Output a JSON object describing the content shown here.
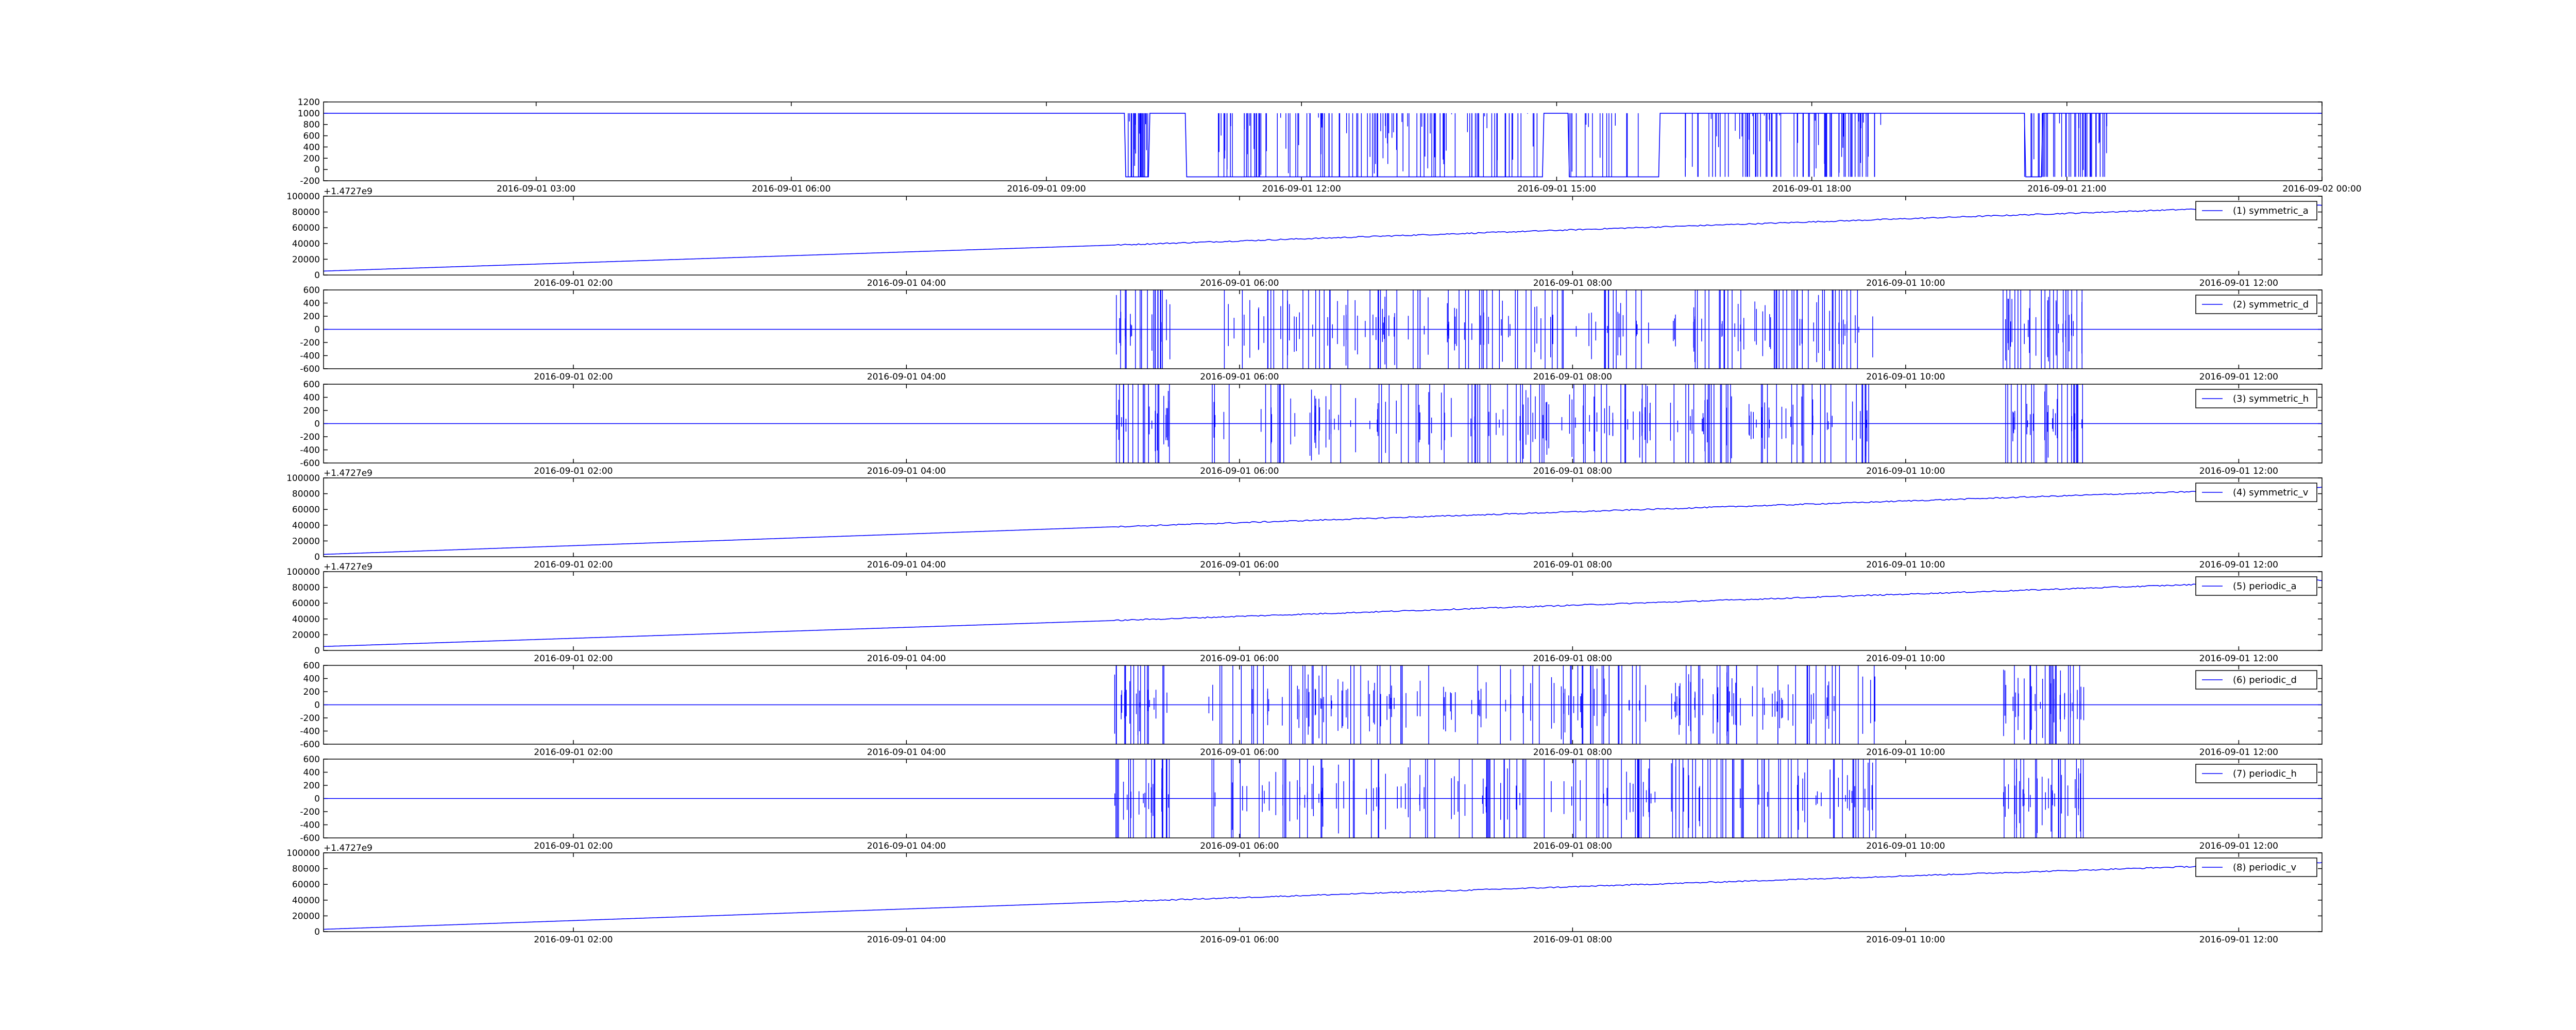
{
  "line_color": "#0000ff",
  "tick_label_color": "#000000",
  "chart_data": [
    {
      "type": "line",
      "legend": null,
      "ylim": [
        -200,
        1200
      ],
      "yticks": [
        "-200",
        "0",
        "200",
        "400",
        "600",
        "800",
        "1000",
        "1200"
      ],
      "xticks": [
        "2016-09-01 03:00",
        "2016-09-01 06:00",
        "2016-09-01 09:00",
        "2016-09-01 12:00",
        "2016-09-01 15:00",
        "2016-09-01 18:00",
        "2016-09-01 21:00",
        "2016-09-02 00:00"
      ],
      "offset_text": "",
      "series": [
        {
          "baseline": 1000,
          "low": -130,
          "x": [
            "2016-09-01 00:30",
            "2016-09-01 09:55",
            "2016-09-01 09:56",
            "2016-09-01 10:12",
            "2016-09-01 10:13",
            "2016-09-01 10:38",
            "2016-09-01 10:39",
            "2016-09-01 14:50",
            "2016-09-01 14:51",
            "2016-09-01 15:08",
            "2016-09-01 15:09",
            "2016-09-01 16:12",
            "2016-09-01 16:13",
            "2016-09-01 20:30",
            "2016-09-01 20:31",
            "2016-09-01 20:42",
            "2016-09-01 20:43",
            "2016-09-01 21:35",
            "2016-09-02 00:00"
          ],
          "y": [
            1000,
            1000,
            -130,
            -130,
            1000,
            1000,
            -130,
            -130,
            1000,
            1000,
            -130,
            -130,
            1000,
            1000,
            -130,
            -130,
            1000,
            1000,
            1000
          ],
          "spike_windows": [
            [
              "2016-09-01 09:55",
              "2016-09-01 10:12",
              25
            ],
            [
              "2016-09-01 11:00",
              "2016-09-01 14:50",
              130
            ],
            [
              "2016-09-01 15:08",
              "2016-09-01 16:12",
              18
            ],
            [
              "2016-09-01 16:30",
              "2016-09-01 18:50",
              90
            ],
            [
              "2016-09-01 20:30",
              "2016-09-01 21:30",
              45
            ]
          ]
        }
      ]
    },
    {
      "type": "line",
      "legend": "(1) symmetric_a",
      "ylim": [
        0,
        100000
      ],
      "yticks": [
        "0",
        "20000",
        "40000",
        "60000",
        "80000",
        "100000"
      ],
      "xticks": [
        "2016-09-01 02:00",
        "2016-09-01 04:00",
        "2016-09-01 06:00",
        "2016-09-01 08:00",
        "2016-09-01 10:00",
        "2016-09-01 12:00"
      ],
      "offset_text": "+1.4727e9",
      "series": [
        {
          "x": [
            "2016-09-01 00:30",
            "2016-09-01 05:15",
            "2016-09-01 12:30"
          ],
          "y": [
            5000,
            38000,
            89000
          ],
          "noise": 1500
        }
      ]
    },
    {
      "type": "line",
      "legend": "(2) symmetric_d",
      "ylim": [
        -600,
        600
      ],
      "yticks": [
        "-600",
        "-400",
        "-200",
        "0",
        "200",
        "400",
        "600"
      ],
      "xticks": [
        "2016-09-01 02:00",
        "2016-09-01 04:00",
        "2016-09-01 06:00",
        "2016-09-01 08:00",
        "2016-09-01 10:00",
        "2016-09-01 12:00"
      ],
      "offset_text": "",
      "series": [
        {
          "baseline": 0,
          "amplitude": 600,
          "spike_windows": [
            [
              "2016-09-01 05:15",
              "2016-09-01 05:35",
              30
            ],
            [
              "2016-09-01 05:48",
              "2016-09-01 06:15",
              14
            ],
            [
              "2016-09-01 06:15",
              "2016-09-01 08:30",
              110
            ],
            [
              "2016-09-01 08:35",
              "2016-09-01 09:50",
              70
            ],
            [
              "2016-09-01 10:35",
              "2016-09-01 11:05",
              40
            ]
          ]
        }
      ]
    },
    {
      "type": "line",
      "legend": "(3) symmetric_h",
      "ylim": [
        -600,
        600
      ],
      "yticks": [
        "-600",
        "-400",
        "-200",
        "0",
        "200",
        "400",
        "600"
      ],
      "xticks": [
        "2016-09-01 02:00",
        "2016-09-01 04:00",
        "2016-09-01 06:00",
        "2016-09-01 08:00",
        "2016-09-01 10:00",
        "2016-09-01 12:00"
      ],
      "offset_text": "",
      "series": [
        {
          "baseline": 0,
          "amplitude": 600,
          "spike_windows": [
            [
              "2016-09-01 05:15",
              "2016-09-01 05:35",
              30
            ],
            [
              "2016-09-01 05:48",
              "2016-09-01 06:15",
              14
            ],
            [
              "2016-09-01 06:15",
              "2016-09-01 08:30",
              110
            ],
            [
              "2016-09-01 08:35",
              "2016-09-01 09:50",
              70
            ],
            [
              "2016-09-01 10:35",
              "2016-09-01 11:05",
              40
            ]
          ]
        }
      ]
    },
    {
      "type": "line",
      "legend": "(4) symmetric_v",
      "ylim": [
        0,
        100000
      ],
      "yticks": [
        "0",
        "20000",
        "40000",
        "60000",
        "80000",
        "100000"
      ],
      "xticks": [
        "2016-09-01 02:00",
        "2016-09-01 04:00",
        "2016-09-01 06:00",
        "2016-09-01 08:00",
        "2016-09-01 10:00",
        "2016-09-01 12:00"
      ],
      "offset_text": "+1.4727e9",
      "series": [
        {
          "x": [
            "2016-09-01 00:30",
            "2016-09-01 05:15",
            "2016-09-01 12:30"
          ],
          "y": [
            3000,
            38000,
            88000
          ],
          "noise": 1500
        }
      ]
    },
    {
      "type": "line",
      "legend": "(5) periodic_a",
      "ylim": [
        0,
        100000
      ],
      "yticks": [
        "0",
        "20000",
        "40000",
        "60000",
        "80000",
        "100000"
      ],
      "xticks": [
        "2016-09-01 02:00",
        "2016-09-01 04:00",
        "2016-09-01 06:00",
        "2016-09-01 08:00",
        "2016-09-01 10:00",
        "2016-09-01 12:00"
      ],
      "offset_text": "+1.4727e9",
      "series": [
        {
          "x": [
            "2016-09-01 00:30",
            "2016-09-01 05:15",
            "2016-09-01 12:30"
          ],
          "y": [
            5000,
            38000,
            89000
          ],
          "noise": 1500
        }
      ]
    },
    {
      "type": "line",
      "legend": "(6) periodic_d",
      "ylim": [
        -600,
        600
      ],
      "yticks": [
        "-600",
        "-400",
        "-200",
        "0",
        "200",
        "400",
        "600"
      ],
      "xticks": [
        "2016-09-01 02:00",
        "2016-09-01 04:00",
        "2016-09-01 06:00",
        "2016-09-01 08:00",
        "2016-09-01 10:00",
        "2016-09-01 12:00"
      ],
      "offset_text": "",
      "series": [
        {
          "baseline": 0,
          "amplitude": 600,
          "spike_windows": [
            [
              "2016-09-01 05:15",
              "2016-09-01 05:35",
              30
            ],
            [
              "2016-09-01 05:48",
              "2016-09-01 06:15",
              14
            ],
            [
              "2016-09-01 06:15",
              "2016-09-01 08:30",
              110
            ],
            [
              "2016-09-01 08:35",
              "2016-09-01 09:50",
              70
            ],
            [
              "2016-09-01 10:35",
              "2016-09-01 11:05",
              40
            ]
          ]
        }
      ]
    },
    {
      "type": "line",
      "legend": "(7) periodic_h",
      "ylim": [
        -600,
        600
      ],
      "yticks": [
        "-600",
        "-400",
        "-200",
        "0",
        "200",
        "400",
        "600"
      ],
      "xticks": [
        "2016-09-01 02:00",
        "2016-09-01 04:00",
        "2016-09-01 06:00",
        "2016-09-01 08:00",
        "2016-09-01 10:00",
        "2016-09-01 12:00"
      ],
      "offset_text": "",
      "series": [
        {
          "baseline": 0,
          "amplitude": 600,
          "spike_windows": [
            [
              "2016-09-01 05:15",
              "2016-09-01 05:35",
              30
            ],
            [
              "2016-09-01 05:48",
              "2016-09-01 06:15",
              14
            ],
            [
              "2016-09-01 06:15",
              "2016-09-01 08:30",
              110
            ],
            [
              "2016-09-01 08:35",
              "2016-09-01 09:50",
              70
            ],
            [
              "2016-09-01 10:35",
              "2016-09-01 11:05",
              40
            ]
          ]
        }
      ]
    },
    {
      "type": "line",
      "legend": "(8) periodic_v",
      "ylim": [
        0,
        100000
      ],
      "yticks": [
        "0",
        "20000",
        "40000",
        "60000",
        "80000",
        "100000"
      ],
      "xticks": [
        "2016-09-01 02:00",
        "2016-09-01 04:00",
        "2016-09-01 06:00",
        "2016-09-01 08:00",
        "2016-09-01 10:00",
        "2016-09-01 12:00"
      ],
      "offset_text": "+1.4727e9",
      "series": [
        {
          "x": [
            "2016-09-01 00:30",
            "2016-09-01 05:15",
            "2016-09-01 12:30"
          ],
          "y": [
            3000,
            38000,
            88000
          ],
          "noise": 1500
        }
      ]
    }
  ]
}
